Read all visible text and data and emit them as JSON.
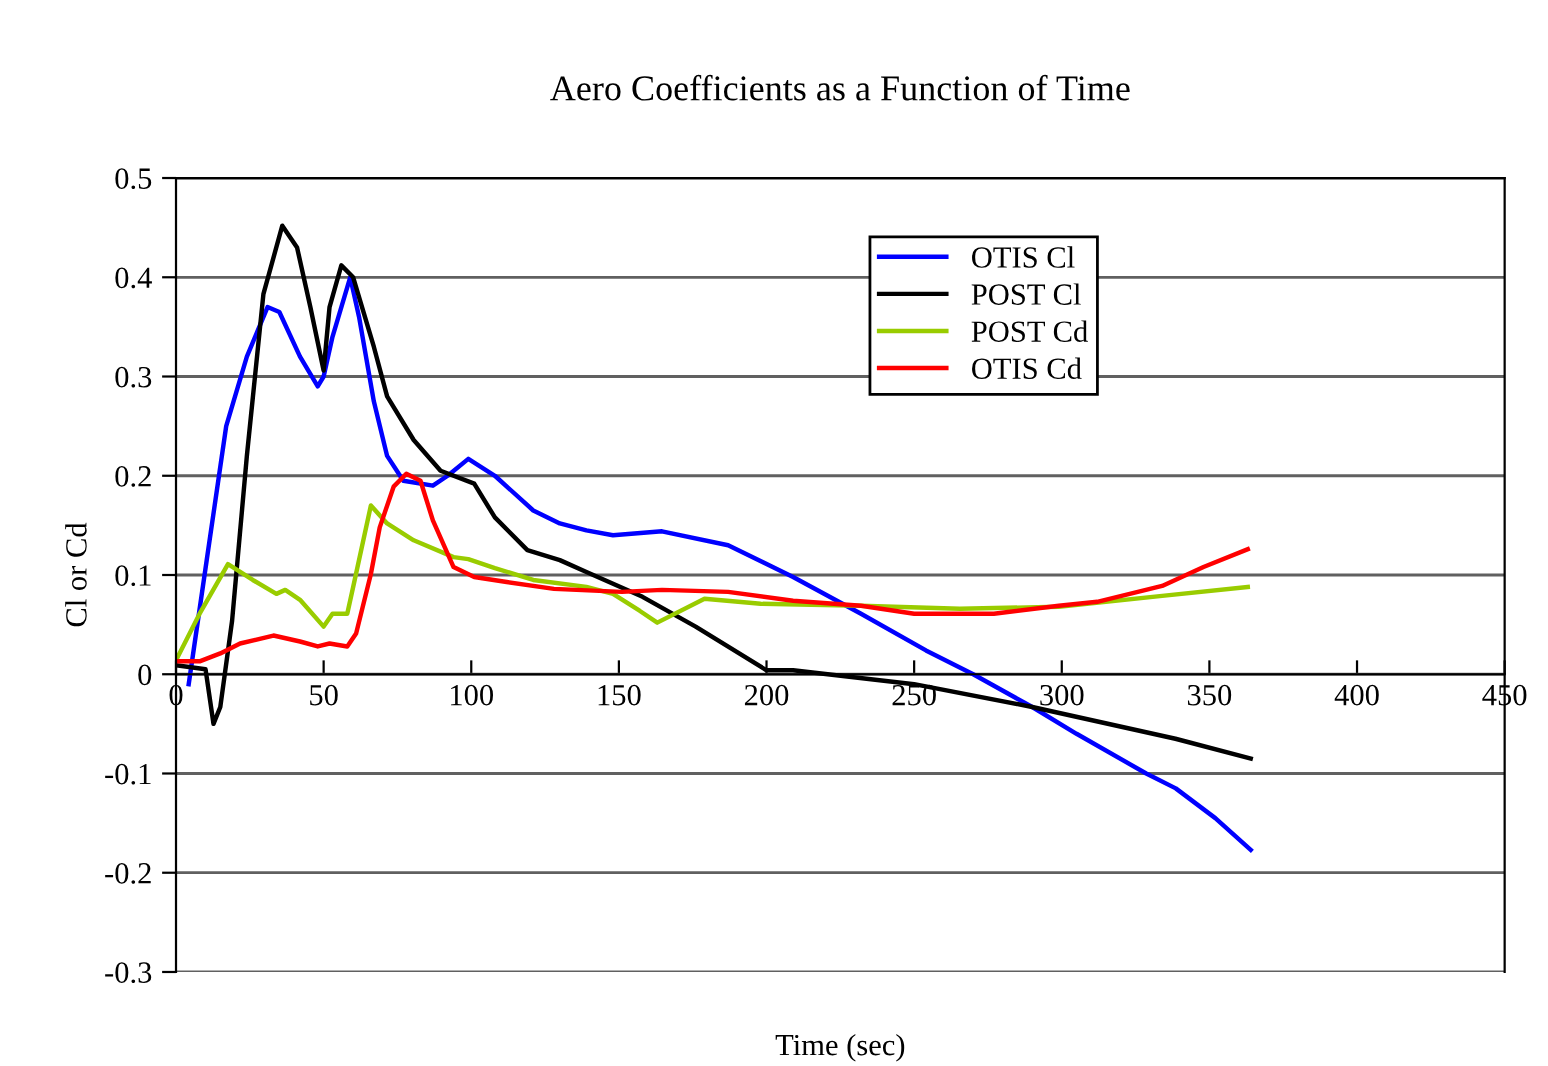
{
  "chart_data": {
    "type": "line",
    "title": "Aero Coefficients as a Function of Time",
    "xlabel": "Time (sec)",
    "ylabel": "Cl or Cd",
    "xlim": [
      0,
      450
    ],
    "xticks": [
      0,
      50,
      100,
      150,
      200,
      250,
      300,
      350,
      400,
      450
    ],
    "ylim": [
      -0.3,
      0.5
    ],
    "yticks": [
      -0.3,
      -0.2,
      -0.1,
      0,
      0.1,
      0.2,
      0.3,
      0.4,
      0.5
    ],
    "grid": "y",
    "legend": "top right",
    "marker": "none",
    "line_style": "solid",
    "series": [
      {
        "name": "OTIS Cl",
        "color": "#0000ff",
        "x": [
          4.3,
          10.4,
          17,
          24,
          31,
          35,
          42,
          48,
          50,
          53,
          59,
          62,
          67,
          71.5,
          77,
          87,
          92,
          99,
          108,
          121,
          130,
          139,
          148,
          164.6,
          187,
          209,
          232,
          254,
          270,
          290,
          305,
          328.6,
          338.6,
          352,
          364
        ],
        "values": [
          -0.01,
          0.115,
          0.25,
          0.32,
          0.37,
          0.365,
          0.32,
          0.29,
          0.3,
          0.34,
          0.4,
          0.36,
          0.275,
          0.22,
          0.195,
          0.19,
          0.2,
          0.217,
          0.2,
          0.165,
          0.152,
          0.145,
          0.14,
          0.144,
          0.13,
          0.098,
          0.061,
          0.024,
          0.0,
          -0.033,
          -0.06,
          -0.1,
          -0.115,
          -0.145,
          -0.177
        ]
      },
      {
        "name": "POST Cl",
        "color": "#000000",
        "x": [
          0,
          10,
          12.7,
          15,
          19,
          24,
          29.6,
          36,
          41,
          45.5,
          50,
          52,
          56,
          60,
          67,
          71.5,
          80.5,
          89.6,
          101,
          108,
          119,
          130,
          139,
          158,
          176,
          200,
          209,
          250,
          290,
          338.5,
          364
        ],
        "values": [
          0.009,
          0.005,
          -0.05,
          -0.033,
          0.054,
          0.22,
          0.383,
          0.452,
          0.43,
          0.37,
          0.306,
          0.37,
          0.412,
          0.4,
          0.33,
          0.28,
          0.236,
          0.205,
          0.192,
          0.158,
          0.125,
          0.115,
          0.103,
          0.078,
          0.048,
          0.004,
          0.004,
          -0.01,
          -0.033,
          -0.065,
          -0.085
        ]
      },
      {
        "name": "POST Cd",
        "color": "#99cc00",
        "x": [
          0,
          8,
          17.6,
          26,
          34,
          37,
          42,
          50,
          53,
          58,
          60,
          66,
          71.5,
          80.5,
          94,
          99,
          108,
          121,
          139,
          148,
          157,
          163,
          179,
          198,
          232,
          265.5,
          299,
          334,
          363
        ],
        "values": [
          0.014,
          0.061,
          0.111,
          0.095,
          0.081,
          0.085,
          0.075,
          0.048,
          0.061,
          0.061,
          0.088,
          0.17,
          0.152,
          0.135,
          0.118,
          0.116,
          0.107,
          0.095,
          0.088,
          0.081,
          0.064,
          0.052,
          0.076,
          0.071,
          0.069,
          0.066,
          0.068,
          0.079,
          0.088
        ]
      },
      {
        "name": "OTIS Cd",
        "color": "#ff0000",
        "x": [
          0,
          8,
          15,
          21.7,
          33,
          42,
          48,
          52,
          58,
          61,
          66,
          69,
          73.7,
          78,
          82.8,
          87,
          94,
          101,
          112,
          128,
          151,
          164.6,
          187,
          209,
          232,
          250,
          277,
          299,
          312,
          334,
          348,
          363
        ],
        "values": [
          0.013,
          0.013,
          0.021,
          0.031,
          0.039,
          0.033,
          0.028,
          0.031,
          0.028,
          0.041,
          0.101,
          0.148,
          0.189,
          0.202,
          0.195,
          0.155,
          0.108,
          0.098,
          0.093,
          0.086,
          0.083,
          0.085,
          0.083,
          0.074,
          0.069,
          0.061,
          0.061,
          0.069,
          0.073,
          0.089,
          0.108,
          0.126
        ]
      }
    ]
  }
}
